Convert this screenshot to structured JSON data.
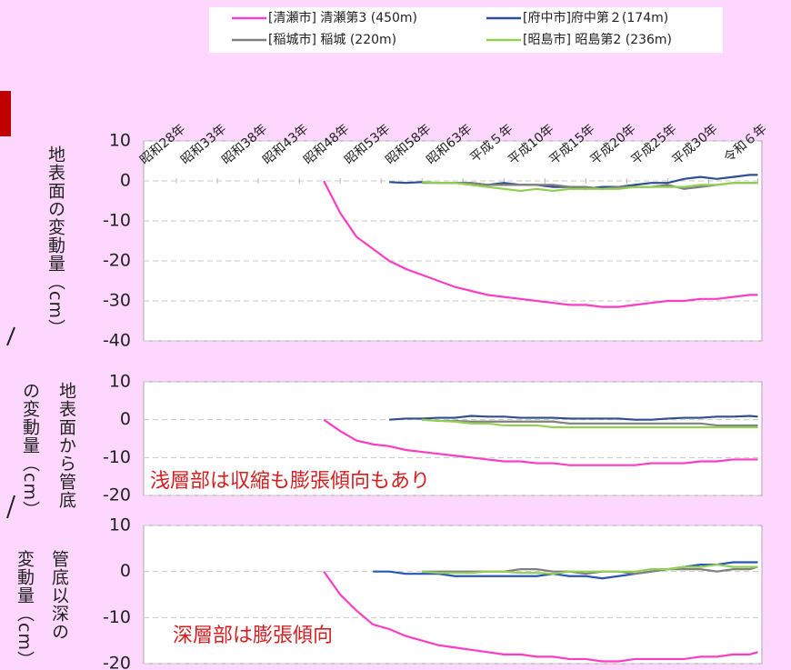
{
  "chart_data": [
    {
      "type": "line",
      "y_label": [
        "地表面の変動量（cm）"
      ],
      "xlim": [
        1949,
        2024.5
      ],
      "xticks": [
        {
          "value": 1953,
          "label": "昭和28年"
        },
        {
          "value": 1958,
          "label": "昭和33年"
        },
        {
          "value": 1963,
          "label": "昭和38年"
        },
        {
          "value": 1968,
          "label": "昭和43年"
        },
        {
          "value": 1973,
          "label": "昭和48年"
        },
        {
          "value": 1978,
          "label": "昭和53年"
        },
        {
          "value": 1983,
          "label": "昭和58年"
        },
        {
          "value": 1988,
          "label": "昭和63年"
        },
        {
          "value": 1993,
          "label": "平成５年"
        },
        {
          "value": 1998,
          "label": "平成10年"
        },
        {
          "value": 2003,
          "label": "平成15年"
        },
        {
          "value": 2008,
          "label": "平成20年"
        },
        {
          "value": 2013,
          "label": "平成25年"
        },
        {
          "value": 2018,
          "label": "平成30年"
        },
        {
          "value": 2024,
          "label": "令和６年"
        }
      ],
      "ylim": [
        10,
        -40
      ],
      "yticks": [
        10,
        0,
        -10,
        -20,
        -30,
        -40
      ],
      "grid": true,
      "x": [
        1971,
        1973,
        1975,
        1977,
        1979,
        1981,
        1983,
        1985,
        1987,
        1989,
        1991,
        1993,
        1995,
        1997,
        1999,
        2001,
        2003,
        2005,
        2007,
        2009,
        2011,
        2013,
        2015,
        2017,
        2019,
        2021,
        2023,
        2024
      ],
      "series": [
        {
          "name": "[清瀬市] 清瀬第3 (450m)",
          "color": "#ff3cc4",
          "values": [
            0,
            -8,
            -14,
            -17,
            -20,
            -22,
            -23.5,
            -25,
            -26.5,
            -27.5,
            -28.5,
            -29,
            -29.5,
            -30,
            -30.5,
            -31,
            -31,
            -31.5,
            -31.5,
            -31,
            -30.5,
            -30,
            -30,
            -29.5,
            -29.5,
            -29,
            -28.5,
            -28.5
          ]
        },
        {
          "name": "[府中市]府中第２(174m)",
          "color": "#2f4f8f",
          "values": [
            null,
            null,
            null,
            null,
            -0.3,
            -0.5,
            -0.3,
            -0.5,
            -0.5,
            -0.5,
            -1,
            -0.5,
            -1,
            -1,
            -1.5,
            -1.5,
            -2,
            -1.5,
            -1.5,
            -1,
            -0.5,
            -0.5,
            0.5,
            1,
            0.5,
            1,
            1.5,
            1.5
          ]
        },
        {
          "name": "[稲城市] 稲城 (220m)",
          "color": "#808080",
          "values": [
            null,
            null,
            null,
            null,
            null,
            null,
            -0.5,
            -0.5,
            -0.5,
            -0.5,
            -1,
            -1,
            -1,
            -1,
            -1,
            -1.5,
            -1.5,
            -2,
            -1.5,
            -1.5,
            -1.5,
            -1,
            -2,
            -1.5,
            -1,
            -0.5,
            -0.5,
            -0.5
          ]
        },
        {
          "name": "[昭島市] 昭島第2 (236m)",
          "color": "#92d050",
          "values": [
            null,
            null,
            null,
            null,
            null,
            null,
            -0.3,
            -0.5,
            -0.5,
            -1,
            -1.5,
            -2,
            -2.5,
            -2,
            -2.5,
            -2,
            -2,
            -2,
            -2,
            -1.5,
            -1.5,
            -1.5,
            -1.5,
            -1,
            -1,
            -0.5,
            -0.5,
            -0.5
          ]
        }
      ]
    },
    {
      "type": "line",
      "y_label": [
        "地表面から管底",
        "の変動量（cm）"
      ],
      "annotation": "浅層部は収縮も膨張傾向もあり",
      "xlim": [
        1949,
        2024.5
      ],
      "ylim": [
        10,
        -20
      ],
      "yticks": [
        10,
        0,
        -10,
        -20
      ],
      "grid": true,
      "x": [
        1971,
        1973,
        1975,
        1977,
        1979,
        1981,
        1983,
        1985,
        1987,
        1989,
        1991,
        1993,
        1995,
        1997,
        1999,
        2001,
        2003,
        2005,
        2007,
        2009,
        2011,
        2013,
        2015,
        2017,
        2019,
        2021,
        2023,
        2024
      ],
      "series": [
        {
          "color": "#ff3cc4",
          "values": [
            0,
            -3,
            -5.5,
            -6.5,
            -7,
            -8,
            -8.5,
            -9,
            -9.5,
            -10,
            -10.5,
            -11,
            -11,
            -11.5,
            -11.5,
            -12,
            -12,
            -12,
            -12,
            -12,
            -11.5,
            -11.5,
            -11.5,
            -11,
            -11,
            -10.5,
            -10.5,
            -10.5
          ]
        },
        {
          "color": "#2f4f8f",
          "values": [
            null,
            null,
            null,
            null,
            0,
            0.3,
            0.3,
            0.5,
            0.5,
            1,
            0.8,
            0.8,
            0.5,
            0.5,
            0.5,
            0.3,
            0.3,
            0.3,
            0.3,
            0,
            0,
            0.3,
            0.5,
            0.5,
            0.8,
            0.8,
            1,
            0.8
          ]
        },
        {
          "color": "#808080",
          "values": [
            null,
            null,
            null,
            null,
            null,
            null,
            0,
            -0.3,
            -0.3,
            -0.5,
            -0.5,
            -0.5,
            -0.5,
            -0.5,
            -0.5,
            -1,
            -1,
            -1,
            -1,
            -1,
            -1,
            -1,
            -1,
            -1,
            -1.5,
            -1.5,
            -1.5,
            -1.5
          ]
        },
        {
          "color": "#92d050",
          "values": [
            null,
            null,
            null,
            null,
            null,
            null,
            0,
            -0.3,
            -0.5,
            -1,
            -1,
            -1.5,
            -1.5,
            -1.5,
            -2,
            -2,
            -2,
            -2,
            -2,
            -2,
            -2,
            -2,
            -2,
            -2,
            -2,
            -2,
            -2,
            -2
          ]
        }
      ]
    },
    {
      "type": "line",
      "y_label": [
        "管底以深の",
        "変動量（cm）"
      ],
      "annotation": "深層部は膨張傾向",
      "xlim": [
        1949,
        2024.5
      ],
      "ylim": [
        10,
        -20
      ],
      "yticks": [
        10,
        0,
        -10,
        -20
      ],
      "grid": true,
      "x": [
        1971,
        1973,
        1975,
        1977,
        1979,
        1981,
        1983,
        1985,
        1987,
        1989,
        1991,
        1993,
        1995,
        1997,
        1999,
        2001,
        2003,
        2005,
        2007,
        2009,
        2011,
        2013,
        2015,
        2017,
        2019,
        2021,
        2023,
        2024
      ],
      "series": [
        {
          "color": "#ff3cc4",
          "values": [
            0,
            -5,
            -8.5,
            -11.5,
            -12.5,
            -14,
            -15,
            -16,
            -16.5,
            -17,
            -17.5,
            -18,
            -18,
            -18.5,
            -18.5,
            -19,
            -19,
            -19.5,
            -19.5,
            -19,
            -19,
            -19,
            -19,
            -18.5,
            -18.5,
            -18,
            -18,
            -17.5
          ]
        },
        {
          "color": "#2656b8",
          "values": [
            null,
            null,
            null,
            0,
            0,
            -0.5,
            -0.5,
            -0.5,
            -1,
            -1,
            -1,
            -1,
            -1,
            -1,
            -0.5,
            -1,
            -1,
            -1.5,
            -1,
            -0.5,
            0,
            0.5,
            1,
            1.5,
            1.5,
            2,
            2,
            2
          ]
        },
        {
          "color": "#808080",
          "values": [
            null,
            null,
            null,
            null,
            null,
            null,
            0,
            0,
            0,
            0,
            0,
            0,
            0.5,
            0.5,
            0,
            0,
            -0.5,
            0,
            0,
            -0.5,
            0,
            0.5,
            0.5,
            0.5,
            0,
            0.5,
            0.5,
            1
          ]
        },
        {
          "color": "#92d050",
          "values": [
            null,
            null,
            null,
            null,
            null,
            null,
            0,
            -0.3,
            -0.3,
            -0.3,
            0,
            0,
            -0.3,
            -0.3,
            -0.5,
            0,
            0,
            0,
            0,
            0,
            0.5,
            0.5,
            1,
            1,
            1.5,
            1,
            1,
            1
          ]
        }
      ]
    }
  ]
}
